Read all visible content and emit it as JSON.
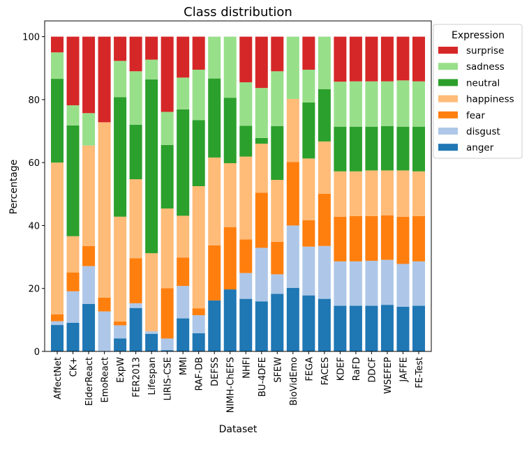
{
  "chart_data": {
    "type": "bar",
    "stacked": true,
    "title": "Class distribution",
    "xlabel": "Dataset",
    "ylabel": "Percentage",
    "ylim": [
      0,
      105
    ],
    "yticks": [
      0,
      20,
      40,
      60,
      80,
      100
    ],
    "grid": false,
    "legend": {
      "title": "Expression",
      "placement": "outside-top-right"
    },
    "categories": [
      "AffectNet",
      "CK+",
      "ElderReact",
      "EmoReact",
      "ExpW",
      "FER2013",
      "Lifespan",
      "LIRIS-CSE",
      "MMI",
      "RAF-DB",
      "DEFSS",
      "NIMH-ChEFS",
      "NHFI",
      "BU-4DFE",
      "SFEW",
      "BioVidEmo",
      "FEGA",
      "FACES",
      "KDEF",
      "RaFD",
      "DDCF",
      "WSEFEP",
      "JAFFE",
      "FE-Test"
    ],
    "series": [
      {
        "name": "anger",
        "color": "#1f77b4",
        "values": [
          8.4,
          9.1,
          15.1,
          0,
          4.1,
          13.8,
          5.6,
          0.4,
          10.5,
          5.8,
          16.2,
          19.7,
          16.7,
          15.9,
          18.3,
          20.2,
          17.8,
          16.7,
          14.5,
          14.5,
          14.5,
          14.8,
          14.2,
          14.5
        ]
      },
      {
        "name": "disgust",
        "color": "#aec7e8",
        "values": [
          1.2,
          10.0,
          12.0,
          12.7,
          4.2,
          1.5,
          0.8,
          3.7,
          10.3,
          5.7,
          0,
          0,
          8.2,
          17.0,
          6.2,
          19.8,
          15.5,
          16.8,
          14.1,
          14.1,
          14.3,
          14.3,
          13.6,
          14.1
        ]
      },
      {
        "name": "fear",
        "color": "#ff7f0e",
        "values": [
          2.2,
          6.0,
          6.4,
          4.4,
          1.2,
          14.3,
          0,
          16.0,
          9.0,
          2.2,
          17.5,
          19.8,
          10.7,
          17.5,
          10.3,
          20.2,
          8.4,
          16.6,
          14.2,
          14.4,
          14.2,
          14.1,
          15.0,
          14.4
        ]
      },
      {
        "name": "happiness",
        "color": "#ffbb78",
        "values": [
          48.2,
          11.5,
          31.9,
          55.7,
          33.3,
          25.1,
          24.8,
          25.3,
          13.3,
          38.8,
          27.9,
          20.3,
          26.3,
          15.6,
          19.7,
          20.0,
          19.6,
          16.6,
          14.4,
          14.2,
          14.5,
          14.3,
          14.7,
          14.2
        ]
      },
      {
        "name": "neutral",
        "color": "#2ca02c",
        "values": [
          26.6,
          35.2,
          0,
          0,
          38.0,
          17.3,
          55.2,
          20.2,
          33.8,
          21.0,
          25.1,
          20.8,
          9.8,
          1.8,
          17.1,
          0,
          17.8,
          16.6,
          14.2,
          14.2,
          13.9,
          14.1,
          13.9,
          14.2
        ]
      },
      {
        "name": "sadness",
        "color": "#98df8a",
        "values": [
          8.4,
          6.4,
          10.3,
          0,
          11.5,
          17.0,
          6.3,
          10.5,
          10.1,
          16.0,
          13.3,
          19.4,
          13.8,
          15.9,
          17.4,
          19.8,
          10.4,
          16.7,
          14.3,
          14.4,
          14.4,
          14.2,
          14.7,
          14.4
        ]
      },
      {
        "name": "surprise",
        "color": "#d62728",
        "values": [
          5.0,
          21.8,
          24.3,
          27.2,
          7.7,
          11.0,
          7.3,
          23.9,
          13.0,
          10.5,
          0,
          0,
          14.5,
          16.3,
          11.0,
          0,
          10.5,
          0,
          14.3,
          14.2,
          14.2,
          14.2,
          13.9,
          14.2
        ]
      }
    ]
  }
}
